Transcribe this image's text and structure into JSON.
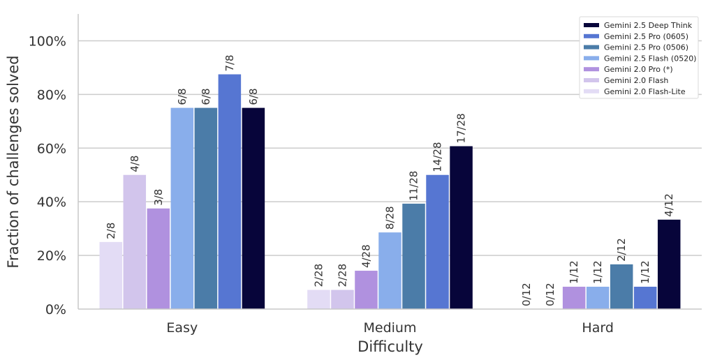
{
  "chart_data": {
    "type": "bar",
    "xlabel": "Difficulty",
    "ylabel": "Fraction of challenges solved",
    "ylim": [
      0,
      1.1
    ],
    "yticks": [
      0,
      0.2,
      0.4,
      0.6,
      0.8,
      1.0
    ],
    "ytick_labels": [
      "0%",
      "20%",
      "40%",
      "60%",
      "80%",
      "100%"
    ],
    "grid": "horizontal",
    "legend_position": "top-right",
    "categories": [
      "Easy",
      "Medium",
      "Hard"
    ],
    "series": [
      {
        "name": "Gemini 2.0 Flash-Lite",
        "color": "#e3dcf5",
        "values": [
          0.25,
          0.0714,
          0.0
        ],
        "labels": [
          "2/8",
          "2/28",
          "0/12"
        ]
      },
      {
        "name": "Gemini 2.0 Flash",
        "color": "#d2c5ec",
        "values": [
          0.5,
          0.0714,
          0.0
        ],
        "labels": [
          "4/8",
          "2/28",
          "0/12"
        ]
      },
      {
        "name": "Gemini 2.0 Pro (*)",
        "color": "#b091df",
        "values": [
          0.375,
          0.1429,
          0.0833
        ],
        "labels": [
          "3/8",
          "4/28",
          "1/12"
        ]
      },
      {
        "name": "Gemini 2.5 Flash (0520)",
        "color": "#89aeeb",
        "values": [
          0.75,
          0.2857,
          0.0833
        ],
        "labels": [
          "6/8",
          "8/28",
          "1/12"
        ]
      },
      {
        "name": "Gemini 2.5 Pro (0506)",
        "color": "#4b7ca8",
        "values": [
          0.75,
          0.3929,
          0.1667
        ],
        "labels": [
          "6/8",
          "11/28",
          "2/12"
        ]
      },
      {
        "name": "Gemini 2.5 Pro (0605)",
        "color": "#5676d2",
        "values": [
          0.875,
          0.5,
          0.0833
        ],
        "labels": [
          "7/8",
          "14/28",
          "1/12"
        ]
      },
      {
        "name": "Gemini 2.5 Deep Think",
        "color": "#07053a",
        "values": [
          0.75,
          0.6071,
          0.3333
        ],
        "labels": [
          "6/8",
          "17/28",
          "4/12"
        ]
      }
    ],
    "legend_order": [
      "Gemini 2.5 Deep Think",
      "Gemini 2.5 Pro (0605)",
      "Gemini 2.5 Pro (0506)",
      "Gemini 2.5 Flash (0520)",
      "Gemini 2.0 Pro (*)",
      "Gemini 2.0 Flash",
      "Gemini 2.0 Flash-Lite"
    ]
  }
}
